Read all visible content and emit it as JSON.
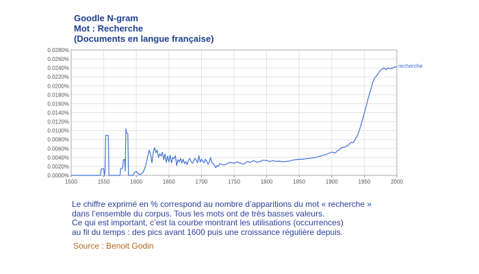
{
  "header": {
    "line1": "Goodle N-gram",
    "line2": "Mot : Recherche",
    "line3": "(Documents en langue française)"
  },
  "caption": {
    "line1": "Le chiffre exprimé en % correspond au nombre d’apparitions du mot « recherche »",
    "line2": "dans l’ensemble du corpus. Tous les mots ont de très basses valeurs.",
    "line3": "Ce qui est important, c’est la courbe montrant les utilisations (occurrences)",
    "line4": "au fil du temps : des pics avant 1600 puis une croissance régulière depuis."
  },
  "source": "Source : Benoit Godin",
  "colors": {
    "line": "#3f6fd8",
    "title": "#1f3f8f",
    "caption": "#2b3f9a",
    "source": "#b06a1c",
    "grid": "#e3e3e3"
  },
  "chart_data": {
    "type": "line",
    "title": "",
    "xlabel": "",
    "ylabel": "",
    "xlim": [
      1500,
      2000
    ],
    "ylim": [
      0,
      0.028
    ],
    "grid": true,
    "x_ticks": [
      "1500",
      "1550",
      "1600",
      "1650",
      "1700",
      "1750",
      "1800",
      "1850",
      "1900",
      "1950",
      "2000"
    ],
    "y_ticks": [
      "0.0000%",
      "0.0020%",
      "0.0040%",
      "0.0060%",
      "0.0080%",
      "0.0100%",
      "0.0120%",
      "0.0140%",
      "0.0160%",
      "0.0180%",
      "0.0200%",
      "0.0220%",
      "0.0240%",
      "0.0260%",
      "0.0280%"
    ],
    "series": [
      {
        "name": "recherche",
        "points": [
          [
            1500,
            0
          ],
          [
            1545,
            0
          ],
          [
            1546,
            0.0014
          ],
          [
            1550,
            0.0015
          ],
          [
            1551,
            0
          ],
          [
            1552,
            0.0009
          ],
          [
            1553,
            0.009
          ],
          [
            1557,
            0.0089
          ],
          [
            1558,
            0
          ],
          [
            1575,
            0
          ],
          [
            1576,
            0.0015
          ],
          [
            1579,
            0.0016
          ],
          [
            1580,
            0.0034
          ],
          [
            1582,
            0.0036
          ],
          [
            1583,
            0.001
          ],
          [
            1584,
            0.0104
          ],
          [
            1585,
            0.0095
          ],
          [
            1587,
            0.0093
          ],
          [
            1588,
            0
          ],
          [
            1595,
            0
          ],
          [
            1597,
            0.0006
          ],
          [
            1600,
            0.0009
          ],
          [
            1603,
            0.0003
          ],
          [
            1606,
            0.0002
          ],
          [
            1610,
            0.0006
          ],
          [
            1612,
            0.0012
          ],
          [
            1614,
            0.002
          ],
          [
            1616,
            0.0032
          ],
          [
            1618,
            0.0046
          ],
          [
            1620,
            0.0056
          ],
          [
            1622,
            0.0047
          ],
          [
            1624,
            0.0028
          ],
          [
            1626,
            0.0052
          ],
          [
            1628,
            0.0062
          ],
          [
            1630,
            0.0051
          ],
          [
            1632,
            0.0056
          ],
          [
            1634,
            0.004
          ],
          [
            1636,
            0.0048
          ],
          [
            1638,
            0.0043
          ],
          [
            1640,
            0.0052
          ],
          [
            1642,
            0.0035
          ],
          [
            1644,
            0.0048
          ],
          [
            1646,
            0.0029
          ],
          [
            1648,
            0.0043
          ],
          [
            1650,
            0.003
          ],
          [
            1652,
            0.0045
          ],
          [
            1654,
            0.0028
          ],
          [
            1656,
            0.004
          ],
          [
            1658,
            0.0037
          ],
          [
            1660,
            0.0044
          ],
          [
            1662,
            0.0022
          ],
          [
            1664,
            0.0035
          ],
          [
            1666,
            0.003
          ],
          [
            1668,
            0.0038
          ],
          [
            1670,
            0.0028
          ],
          [
            1672,
            0.0036
          ],
          [
            1674,
            0.0026
          ],
          [
            1676,
            0.0031
          ],
          [
            1678,
            0.0024
          ],
          [
            1680,
            0.0034
          ],
          [
            1682,
            0.0038
          ],
          [
            1684,
            0.0031
          ],
          [
            1686,
            0.0027
          ],
          [
            1688,
            0.0032
          ],
          [
            1690,
            0.0038
          ],
          [
            1692,
            0.0034
          ],
          [
            1694,
            0.0028
          ],
          [
            1696,
            0.0044
          ],
          [
            1698,
            0.003
          ],
          [
            1700,
            0.0036
          ],
          [
            1702,
            0.0032
          ],
          [
            1704,
            0.0028
          ],
          [
            1706,
            0.0036
          ],
          [
            1708,
            0.0032
          ],
          [
            1710,
            0.0025
          ],
          [
            1712,
            0.003
          ],
          [
            1714,
            0.004
          ],
          [
            1716,
            0.0028
          ],
          [
            1718,
            0.0027
          ],
          [
            1720,
            0.0022
          ],
          [
            1722,
            0.0017
          ],
          [
            1724,
            0.0022
          ],
          [
            1726,
            0.002
          ],
          [
            1728,
            0.0026
          ],
          [
            1730,
            0.0025
          ],
          [
            1735,
            0.0023
          ],
          [
            1740,
            0.0027
          ],
          [
            1745,
            0.0029
          ],
          [
            1750,
            0.0027
          ],
          [
            1755,
            0.003
          ],
          [
            1760,
            0.0027
          ],
          [
            1765,
            0.0025
          ],
          [
            1770,
            0.0031
          ],
          [
            1775,
            0.0029
          ],
          [
            1780,
            0.0033
          ],
          [
            1785,
            0.0029
          ],
          [
            1790,
            0.0031
          ],
          [
            1795,
            0.0034
          ],
          [
            1800,
            0.0033
          ],
          [
            1805,
            0.0031
          ],
          [
            1810,
            0.0033
          ],
          [
            1815,
            0.0031
          ],
          [
            1820,
            0.0032
          ],
          [
            1825,
            0.003
          ],
          [
            1830,
            0.0031
          ],
          [
            1835,
            0.0032
          ],
          [
            1840,
            0.0034
          ],
          [
            1845,
            0.0035
          ],
          [
            1850,
            0.0036
          ],
          [
            1855,
            0.0036
          ],
          [
            1860,
            0.0037
          ],
          [
            1865,
            0.0038
          ],
          [
            1870,
            0.0039
          ],
          [
            1875,
            0.004
          ],
          [
            1880,
            0.0042
          ],
          [
            1885,
            0.0044
          ],
          [
            1890,
            0.0046
          ],
          [
            1895,
            0.0049
          ],
          [
            1900,
            0.0052
          ],
          [
            1905,
            0.005
          ],
          [
            1910,
            0.0056
          ],
          [
            1915,
            0.0062
          ],
          [
            1920,
            0.0063
          ],
          [
            1925,
            0.0067
          ],
          [
            1930,
            0.0074
          ],
          [
            1933,
            0.0073
          ],
          [
            1936,
            0.008
          ],
          [
            1940,
            0.0091
          ],
          [
            1944,
            0.0108
          ],
          [
            1948,
            0.0128
          ],
          [
            1952,
            0.015
          ],
          [
            1956,
            0.0172
          ],
          [
            1960,
            0.0192
          ],
          [
            1963,
            0.0208
          ],
          [
            1966,
            0.0218
          ],
          [
            1970,
            0.0224
          ],
          [
            1973,
            0.0232
          ],
          [
            1976,
            0.0236
          ],
          [
            1980,
            0.024
          ],
          [
            1983,
            0.0236
          ],
          [
            1986,
            0.024
          ],
          [
            1990,
            0.0238
          ],
          [
            1994,
            0.024
          ],
          [
            1997,
            0.0242
          ],
          [
            2000,
            0.0242
          ]
        ]
      }
    ]
  }
}
